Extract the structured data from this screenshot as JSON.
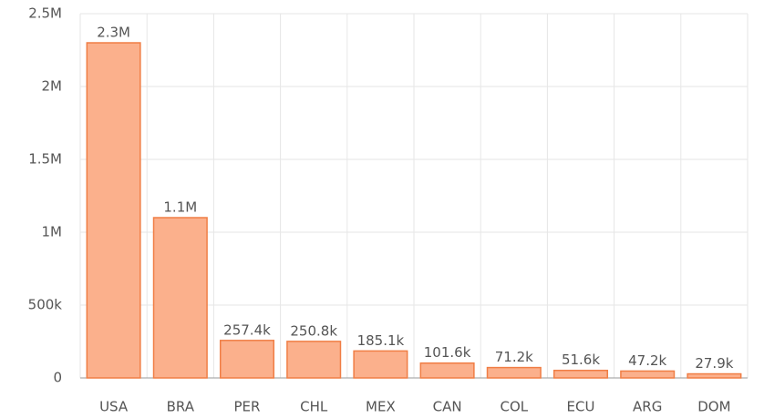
{
  "chart_data": {
    "type": "bar",
    "categories": [
      "USA",
      "BRA",
      "PER",
      "CHL",
      "MEX",
      "CAN",
      "COL",
      "ECU",
      "ARG",
      "DOM"
    ],
    "values": [
      2300000,
      1100000,
      257400,
      250800,
      185100,
      101600,
      71200,
      51600,
      47200,
      27900
    ],
    "value_labels": [
      "2.3M",
      "1.1M",
      "257.4k",
      "250.8k",
      "185.1k",
      "101.6k",
      "71.2k",
      "51.6k",
      "47.2k",
      "27.9k"
    ],
    "color": "#fbb08c",
    "edge_color": "#f07e45",
    "ylim": [
      0,
      2500000
    ],
    "yticks": [
      0,
      {
        "value": 500000,
        "label": "500k"
      },
      {
        "value": 1000000,
        "label": "1M"
      },
      {
        "value": 1500000,
        "label": "1.5M"
      },
      {
        "value": 2000000,
        "label": "2M"
      },
      {
        "value": 2500000,
        "label": "2.5M"
      }
    ],
    "grid": true
  }
}
